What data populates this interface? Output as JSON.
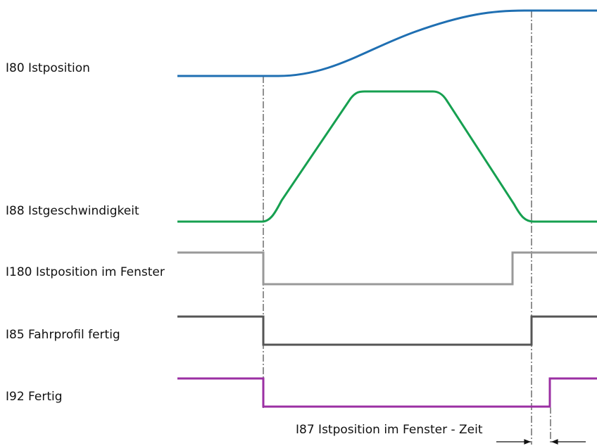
{
  "signals": [
    {
      "label": "I80 Istposition",
      "color": "#1f6fb2"
    },
    {
      "label": "I88 Istgeschwindigkeit",
      "color": "#16a050"
    },
    {
      "label": "I180 Istposition im Fenster",
      "color": "#999999"
    },
    {
      "label": "I85 Fahrprofil fertig",
      "color": "#555555"
    },
    {
      "label": "I92 Fertig",
      "color": "#9b2fa3"
    }
  ],
  "annotation": "I87  Istposition im Fenster - Zeit"
}
